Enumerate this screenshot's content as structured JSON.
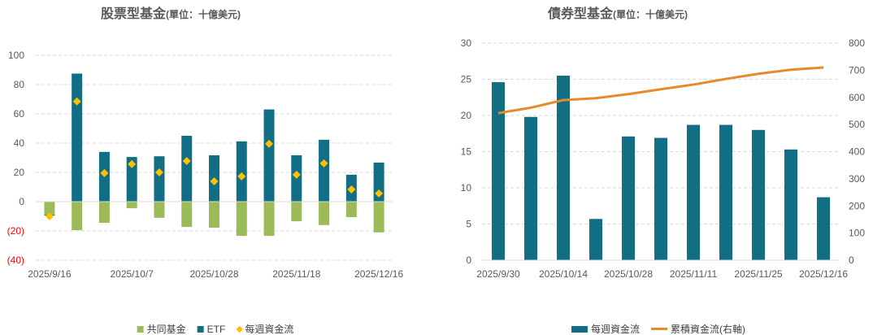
{
  "colors": {
    "mutual": "#9BBB59",
    "etf": "#116E85",
    "flow": "#FFC000",
    "cumulative": "#E8892B",
    "grid": "#D9D9D9",
    "axis_text": "#595959",
    "neg_text": "#FF0000"
  },
  "chart_data": [
    {
      "type": "bar",
      "title": "股票型基金",
      "unit": "(單位：十億美元)",
      "stacked": true,
      "ylim": [
        -40,
        100
      ],
      "yticks": [
        100,
        80,
        60,
        40,
        20,
        0,
        -20,
        -40
      ],
      "ytick_labels": [
        "100",
        "80",
        "60",
        "40",
        "20",
        "0",
        "(20)",
        "(40)"
      ],
      "xtick_labels": [
        {
          "index": 0,
          "label": "2025/9/16"
        },
        {
          "index": 3,
          "label": "2025/10/7"
        },
        {
          "index": 6,
          "label": "2025/10/28"
        },
        {
          "index": 9,
          "label": "2025/11/18"
        },
        {
          "index": 12,
          "label": "2025/12/16"
        }
      ],
      "series": [
        {
          "name": "共同基金",
          "kind": "bar",
          "values": [
            -9,
            -19.5,
            -14.5,
            -4.5,
            -11,
            -17.3,
            -17.8,
            -23.4,
            -23.4,
            -13.4,
            -16,
            -10.6,
            -21
          ]
        },
        {
          "name": "ETF",
          "kind": "bar",
          "values": [
            -0.5,
            87.5,
            34,
            30.5,
            31,
            45,
            31.7,
            41.2,
            63,
            31.7,
            42.3,
            18.4,
            26.7
          ]
        },
        {
          "name": "每週資金流",
          "kind": "marker",
          "values": [
            -10,
            68.5,
            19.5,
            25.6,
            20,
            27.8,
            13.9,
            17.3,
            39.5,
            18.4,
            26.2,
            8.3,
            5.6
          ]
        }
      ],
      "legend": "bottom",
      "grid": true
    },
    {
      "type": "bar",
      "title": "債券型基金",
      "unit": "(單位：十億美元)",
      "ylim": [
        0,
        30
      ],
      "yticks": [
        0,
        5,
        10,
        15,
        20,
        25,
        30
      ],
      "y2lim": [
        0,
        800
      ],
      "y2ticks": [
        0,
        100,
        200,
        300,
        400,
        500,
        600,
        700,
        800
      ],
      "xtick_labels": [
        {
          "index": 0,
          "label": "2025/9/30"
        },
        {
          "index": 2,
          "label": "2025/10/14"
        },
        {
          "index": 4,
          "label": "2025/10/28"
        },
        {
          "index": 6,
          "label": "2025/11/11"
        },
        {
          "index": 8,
          "label": "2025/11/25"
        },
        {
          "index": 10,
          "label": "2025/12/16"
        }
      ],
      "series": [
        {
          "name": "每週資金流",
          "kind": "bar",
          "values": [
            24.6,
            19.8,
            25.5,
            5.7,
            17.1,
            16.9,
            18.7,
            18.7,
            18.0,
            15.3,
            8.7
          ]
        },
        {
          "name": "累積資金流(右軸)",
          "kind": "line",
          "axis": "right",
          "values": [
            542,
            562,
            590,
            597,
            612,
            630,
            647,
            668,
            687,
            702,
            710
          ]
        }
      ],
      "legend": "bottom",
      "grid": true
    }
  ]
}
